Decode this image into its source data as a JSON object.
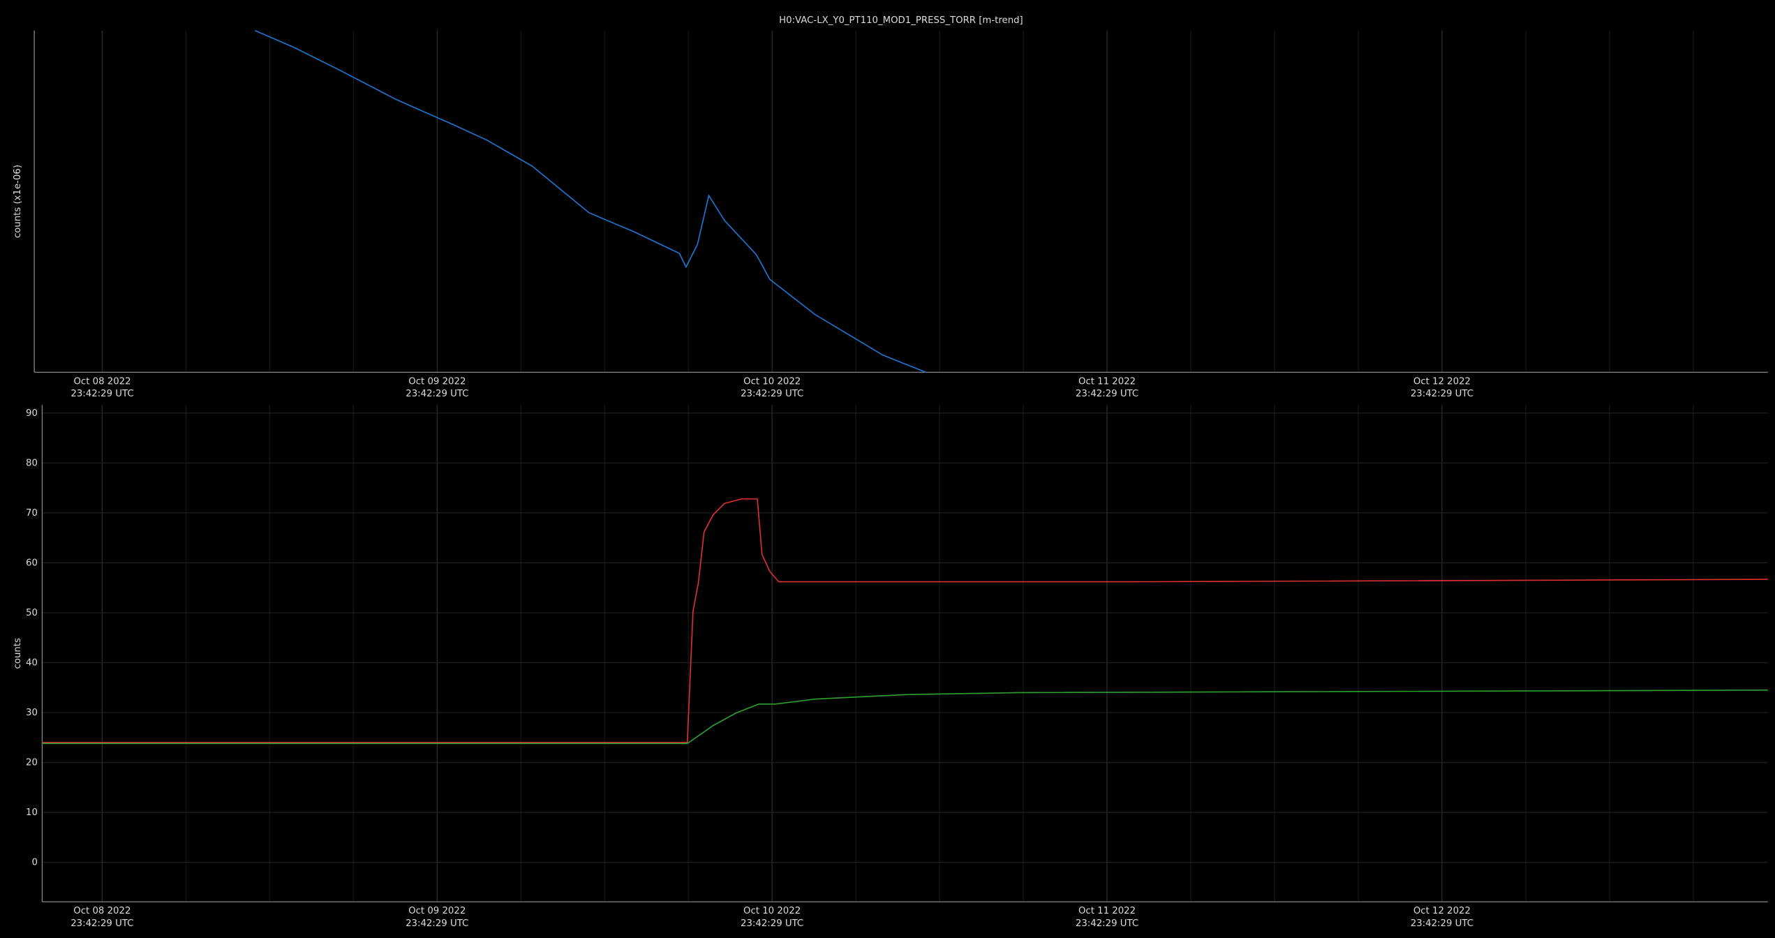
{
  "chart_data": [
    {
      "type": "line",
      "title": "H0:VAC-LX_Y0_PT110_MOD1_PRESS_TORR [m-trend]",
      "y_label": "counts (x1e-06)",
      "xlim": [
        8.785,
        13.961
      ],
      "ylim": [
        0,
        100
      ],
      "xticks": [
        {
          "value": 8.988,
          "label": "Oct 08 2022\n23:42:29 UTC"
        },
        {
          "value": 9.988,
          "label": "Oct 09 2022\n23:42:29 UTC"
        },
        {
          "value": 10.988,
          "label": "Oct 10 2022\n23:42:29 UTC"
        },
        {
          "value": 11.988,
          "label": "Oct 11 2022\n23:42:29 UTC"
        },
        {
          "value": 12.988,
          "label": "Oct 12 2022\n23:42:29 UTC"
        }
      ],
      "grid": true,
      "series": [
        {
          "color": "#1f77d4",
          "x": [
            9.444,
            9.562,
            9.697,
            9.866,
            10.035,
            10.137,
            10.272,
            10.441,
            10.576,
            10.711,
            10.731,
            10.765,
            10.799,
            10.846,
            10.941,
            10.981,
            11.116,
            11.319,
            11.447
          ],
          "values": [
            100,
            95,
            88.4,
            79.8,
            72.5,
            67.9,
            60.3,
            46.7,
            41.1,
            34.8,
            30.8,
            37.4,
            51.7,
            44.4,
            34.4,
            27.2,
            16.9,
            5.0,
            0
          ]
        }
      ]
    },
    {
      "type": "line",
      "y_label": "counts",
      "xlim": [
        8.809,
        13.961
      ],
      "ylim": [
        -7.9,
        91.6
      ],
      "xticks": [
        {
          "value": 8.988,
          "label": "Oct 08 2022\n23:42:29 UTC"
        },
        {
          "value": 9.988,
          "label": "Oct 09 2022\n23:42:29 UTC"
        },
        {
          "value": 10.988,
          "label": "Oct 10 2022\n23:42:29 UTC"
        },
        {
          "value": 11.988,
          "label": "Oct 11 2022\n23:42:29 UTC"
        },
        {
          "value": 12.988,
          "label": "Oct 12 2022\n23:42:29 UTC"
        }
      ],
      "yticks": [
        0,
        10,
        20,
        30,
        40,
        50,
        60,
        70,
        80,
        90
      ],
      "grid": true,
      "series": [
        {
          "color": "#e03030",
          "x": [
            8.809,
            10.735,
            10.752,
            10.768,
            10.785,
            10.812,
            10.846,
            10.897,
            10.944,
            10.958,
            10.981,
            11.008,
            12.062,
            13.961
          ],
          "values": [
            24.0,
            24.0,
            50.3,
            56.0,
            66.2,
            69.6,
            71.9,
            72.8,
            72.8,
            61.7,
            58.3,
            56.2,
            56.2,
            56.7
          ]
        },
        {
          "color": "#2ea02e",
          "x": [
            8.809,
            10.735,
            10.812,
            10.88,
            10.948,
            10.998,
            11.116,
            11.387,
            11.724,
            13.961
          ],
          "values": [
            23.8,
            23.8,
            27.4,
            29.9,
            31.7,
            31.7,
            32.7,
            33.6,
            34.0,
            34.5
          ]
        }
      ]
    }
  ]
}
